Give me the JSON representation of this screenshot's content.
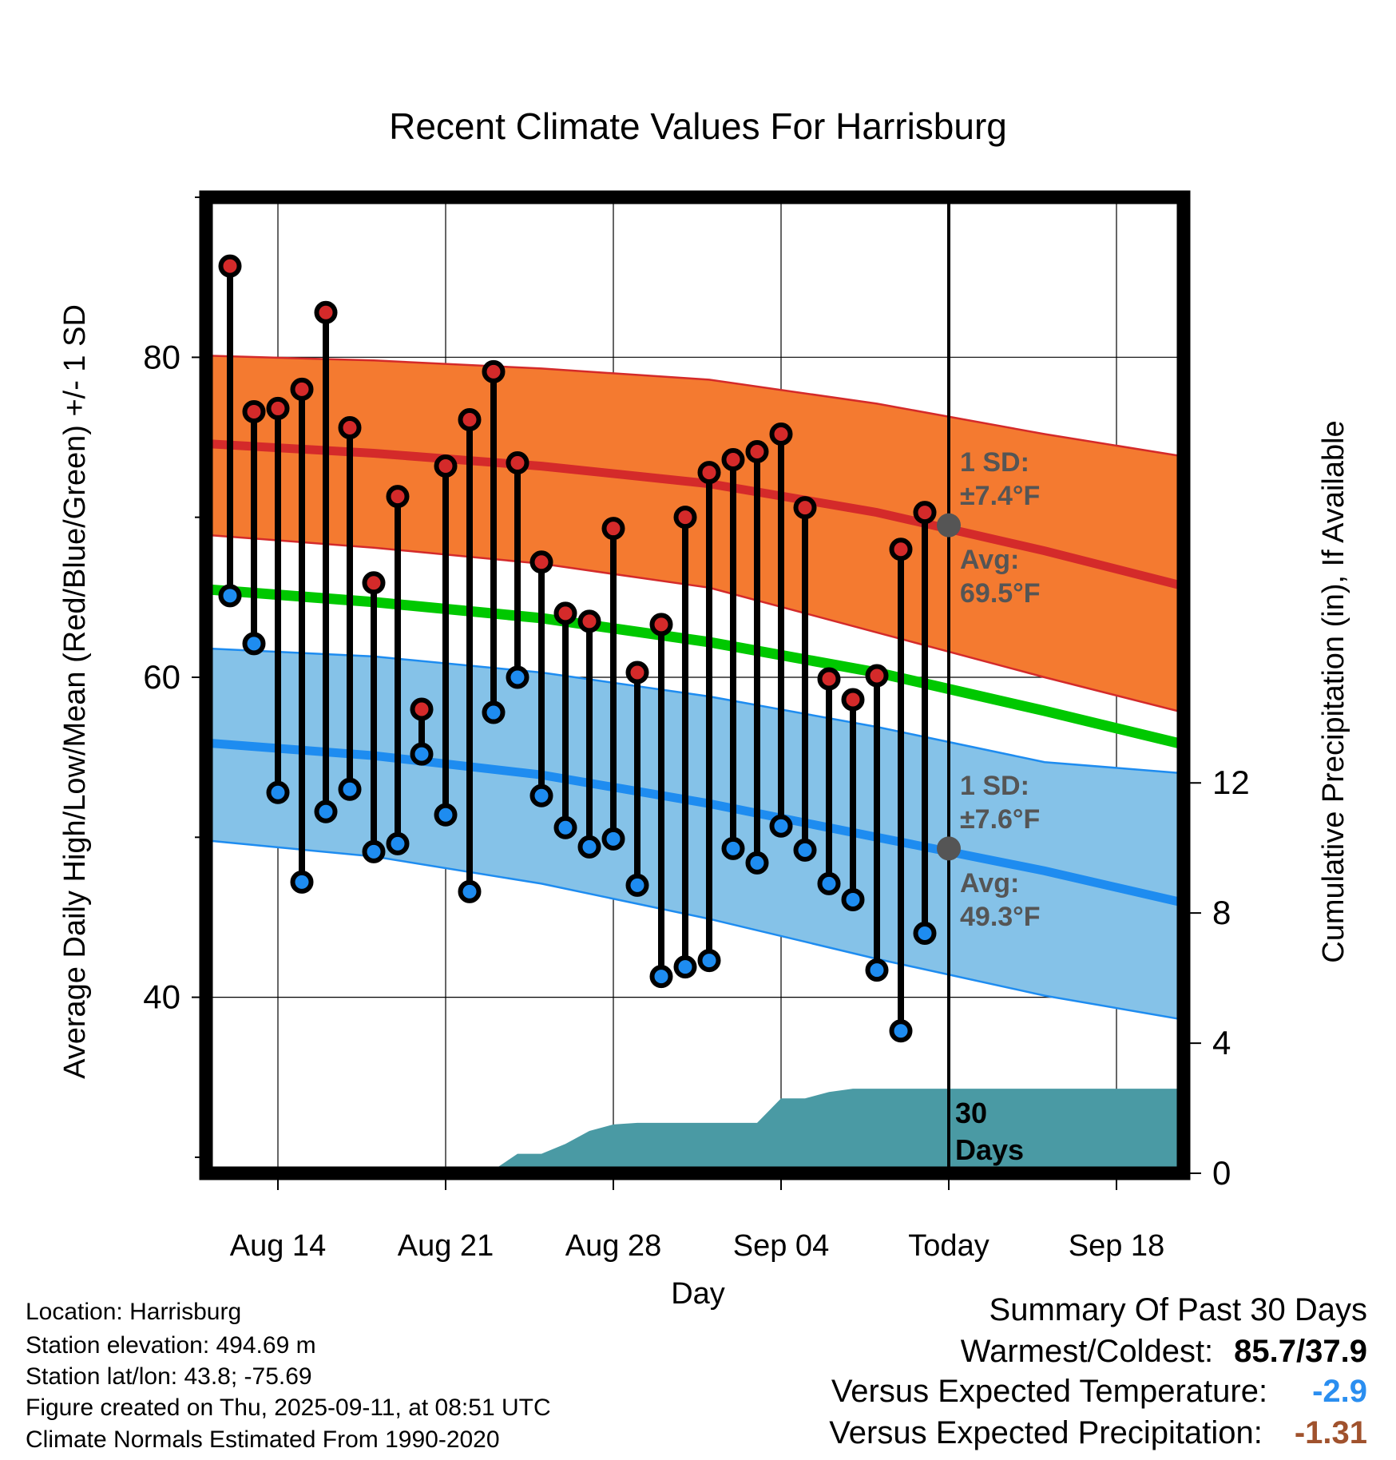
{
  "chart_data": {
    "type": "line",
    "title": "Recent Climate Values For Harrisburg",
    "xlabel": "Day",
    "ylabel": "Average Daily High/Low/Mean (Red/Blue/Green) +/- 1 SD",
    "y2label": "Cumulative Precipitation (in), If Available",
    "ylim": [
      29,
      90
    ],
    "y_ticks": [
      "40",
      "60",
      "80"
    ],
    "y_tick_values": [
      40,
      60,
      80
    ],
    "y_minor_ticks": [
      30,
      50,
      70,
      90
    ],
    "y2lim": [
      0,
      30
    ],
    "y2_ticks": [
      "0",
      "4",
      "8",
      "12"
    ],
    "y2_tick_values": [
      0,
      4,
      8,
      12
    ],
    "x_dates": [
      "Aug 12",
      "Aug 13",
      "Aug 14",
      "Aug 15",
      "Aug 16",
      "Aug 17",
      "Aug 18",
      "Aug 19",
      "Aug 20",
      "Aug 21",
      "Aug 22",
      "Aug 23",
      "Aug 24",
      "Aug 25",
      "Aug 26",
      "Aug 27",
      "Aug 28",
      "Aug 29",
      "Aug 30",
      "Aug 31",
      "Sep 01",
      "Sep 02",
      "Sep 03",
      "Sep 04",
      "Sep 05",
      "Sep 06",
      "Sep 07",
      "Sep 08",
      "Sep 09",
      "Sep 10",
      "Sep 11",
      "Sep 12",
      "Sep 13",
      "Sep 14",
      "Sep 15",
      "Sep 16",
      "Sep 17",
      "Sep 18",
      "Sep 19",
      "Sep 20",
      "Sep 21"
    ],
    "x_tick_labels": [
      "Aug 14",
      "Aug 21",
      "Aug 28",
      "Sep 04",
      "Today",
      "Sep 18"
    ],
    "x_tick_dates": [
      "Aug 14",
      "Aug 21",
      "Aug 28",
      "Sep 04",
      "Sep 11",
      "Sep 18"
    ],
    "today": "Sep 11",
    "grid": true,
    "normals": {
      "dates": [
        "Aug 11",
        "Aug 18",
        "Aug 25",
        "Sep 01",
        "Sep 08",
        "Sep 15",
        "Sep 21"
      ],
      "high_avg": [
        74.6,
        74.0,
        73.2,
        72.1,
        70.3,
        67.9,
        65.7
      ],
      "high_sd_upper": [
        80.1,
        79.8,
        79.3,
        78.6,
        77.1,
        75.2,
        73.8
      ],
      "high_sd_lower": [
        68.9,
        68.1,
        67.1,
        65.6,
        62.8,
        60.0,
        57.8
      ],
      "mean_avg": [
        65.5,
        64.7,
        63.7,
        62.2,
        60.3,
        57.9,
        55.8
      ],
      "low_avg": [
        55.9,
        55.1,
        53.9,
        52.1,
        50.0,
        47.9,
        45.9
      ],
      "low_sd_upper": [
        61.8,
        61.3,
        60.3,
        58.8,
        56.9,
        54.7,
        54.0
      ],
      "low_sd_lower": [
        49.8,
        48.8,
        47.1,
        44.9,
        42.4,
        40.1,
        38.6
      ]
    },
    "observed": {
      "dates": [
        "Aug 12",
        "Aug 13",
        "Aug 14",
        "Aug 15",
        "Aug 16",
        "Aug 17",
        "Aug 18",
        "Aug 19",
        "Aug 20",
        "Aug 21",
        "Aug 22",
        "Aug 23",
        "Aug 24",
        "Aug 25",
        "Aug 26",
        "Aug 27",
        "Aug 28",
        "Aug 29",
        "Aug 30",
        "Aug 31",
        "Sep 01",
        "Sep 02",
        "Sep 03",
        "Sep 04",
        "Sep 05",
        "Sep 06",
        "Sep 07",
        "Sep 08",
        "Sep 09",
        "Sep 10"
      ],
      "high": [
        85.7,
        76.6,
        76.8,
        78.0,
        82.8,
        75.6,
        65.9,
        71.3,
        58.0,
        73.2,
        76.1,
        79.1,
        73.4,
        67.2,
        64.0,
        63.5,
        69.3,
        60.3,
        63.3,
        70.0,
        72.8,
        73.6,
        74.1,
        75.2,
        70.6,
        59.9,
        58.6,
        60.1,
        68.0,
        70.3
      ],
      "low": [
        65.1,
        62.1,
        52.8,
        47.2,
        51.6,
        53.0,
        49.1,
        49.6,
        55.2,
        51.4,
        46.6,
        57.8,
        60.0,
        52.6,
        50.6,
        49.4,
        49.9,
        47.0,
        41.3,
        41.9,
        42.3,
        49.3,
        48.4,
        50.7,
        49.2,
        47.1,
        46.1,
        41.7,
        37.9,
        44.0
      ]
    },
    "precip": {
      "dates": [
        "Aug 20",
        "Aug 21",
        "Aug 22",
        "Aug 23",
        "Aug 24",
        "Aug 25",
        "Aug 26",
        "Aug 27",
        "Aug 28",
        "Aug 29",
        "Aug 30",
        "Aug 31",
        "Sep 01",
        "Sep 02",
        "Sep 03",
        "Sep 04",
        "Sep 05",
        "Sep 06",
        "Sep 07",
        "Sep 08",
        "Sep 09",
        "Sep 10",
        "Sep 11"
      ],
      "cumulative": [
        0.1,
        0.1,
        0.1,
        0.1,
        0.6,
        0.6,
        0.9,
        1.3,
        1.5,
        1.55,
        1.55,
        1.55,
        1.55,
        1.55,
        1.55,
        2.3,
        2.3,
        2.5,
        2.6,
        2.6,
        2.6,
        2.6,
        2.6
      ]
    },
    "colors": {
      "high_band": "#f47a30",
      "high_line": "#d42a2a",
      "low_band": "#85c2e8",
      "low_line": "#1e8cf0",
      "mean_line": "#00c800",
      "precip_fill": "#4a9aa4",
      "high_dot": "#d42a2a",
      "low_dot": "#1e8cf0",
      "annotation_text": "#555555",
      "marker_gray": "#555555"
    },
    "annotations": {
      "high_sd_label": "1 SD:",
      "high_sd_value": "±7.4°F",
      "high_avg_label": "Avg:",
      "high_avg_value": "69.5°F",
      "high_avg_today": 69.5,
      "low_sd_label": "1 SD:",
      "low_sd_value": "±7.6°F",
      "low_avg_label": "Avg:",
      "low_avg_value": "49.3°F",
      "low_avg_today": 49.3,
      "precip_period_1": "30",
      "precip_period_2": "Days"
    }
  },
  "info": {
    "location": "Location: Harrisburg",
    "elevation": "Station elevation: 494.69 m",
    "latlon": "Station lat/lon: 43.8; -75.69",
    "created": "Figure created on Thu, 2025-09-11, at 08:51 UTC",
    "normals": "Climate Normals Estimated From 1990-2020"
  },
  "summary": {
    "title": "Summary Of Past 30 Days",
    "warmest_label": "Warmest/Coldest:",
    "warmest_value": "85.7/37.9",
    "temp_label": "Versus Expected Temperature:",
    "temp_value": "-2.9",
    "temp_color": "#2a8ef0",
    "precip_label": "Versus Expected Precipitation:",
    "precip_value": "-1.31",
    "precip_color": "#a0522d"
  }
}
